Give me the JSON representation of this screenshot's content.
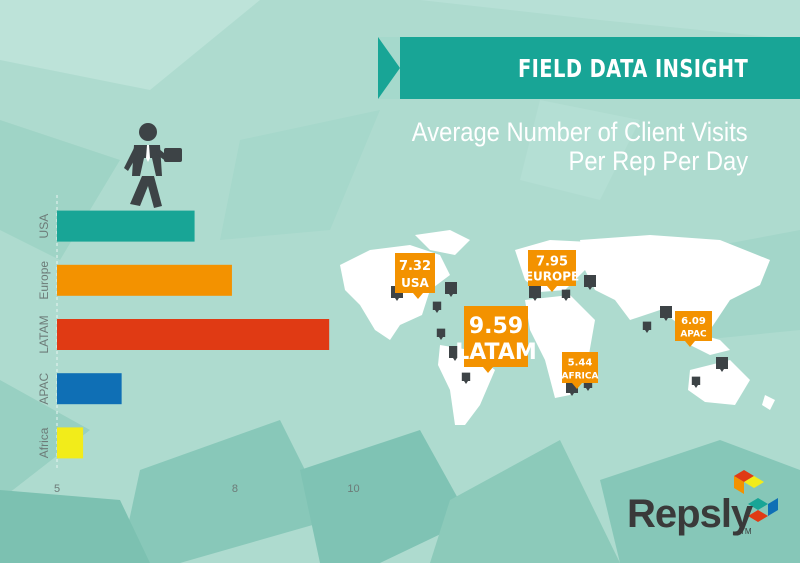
{
  "header": {
    "banner_label": "FIELD DATA INSIGHT",
    "subtitle_line1": "Average Number of Client Visits",
    "subtitle_line2": "Per Rep Per Day"
  },
  "brand": {
    "name": "Repsly",
    "trademark": "TM",
    "colors": {
      "teal": "#18a596",
      "background": "#aedbcf"
    }
  },
  "icons": [
    "businessman-walking-icon",
    "world-map",
    "location-pin-icon",
    "repsly-logo-mark"
  ],
  "chart_data": {
    "type": "bar",
    "orientation": "horizontal",
    "categories": [
      "USA",
      "Europe",
      "LATAM",
      "APAC",
      "Africa"
    ],
    "values": [
      7.32,
      7.95,
      9.59,
      6.09,
      5.44
    ],
    "colors": [
      "#18a596",
      "#f39200",
      "#e03a14",
      "#0f6fb5",
      "#f2ec1a"
    ],
    "xlim": [
      5,
      11
    ],
    "xticks": [
      5,
      8,
      10
    ],
    "xtick_labels": [
      "5",
      "8",
      "10"
    ],
    "grid": false,
    "map_labels": [
      {
        "value": "7.32",
        "region": "USA"
      },
      {
        "value": "7.95",
        "region": "EUROPE"
      },
      {
        "value": "9.59",
        "region": "LATAM"
      },
      {
        "value": "5.44",
        "region": "AFRICA"
      },
      {
        "value": "6.09",
        "region": "APAC"
      }
    ]
  }
}
